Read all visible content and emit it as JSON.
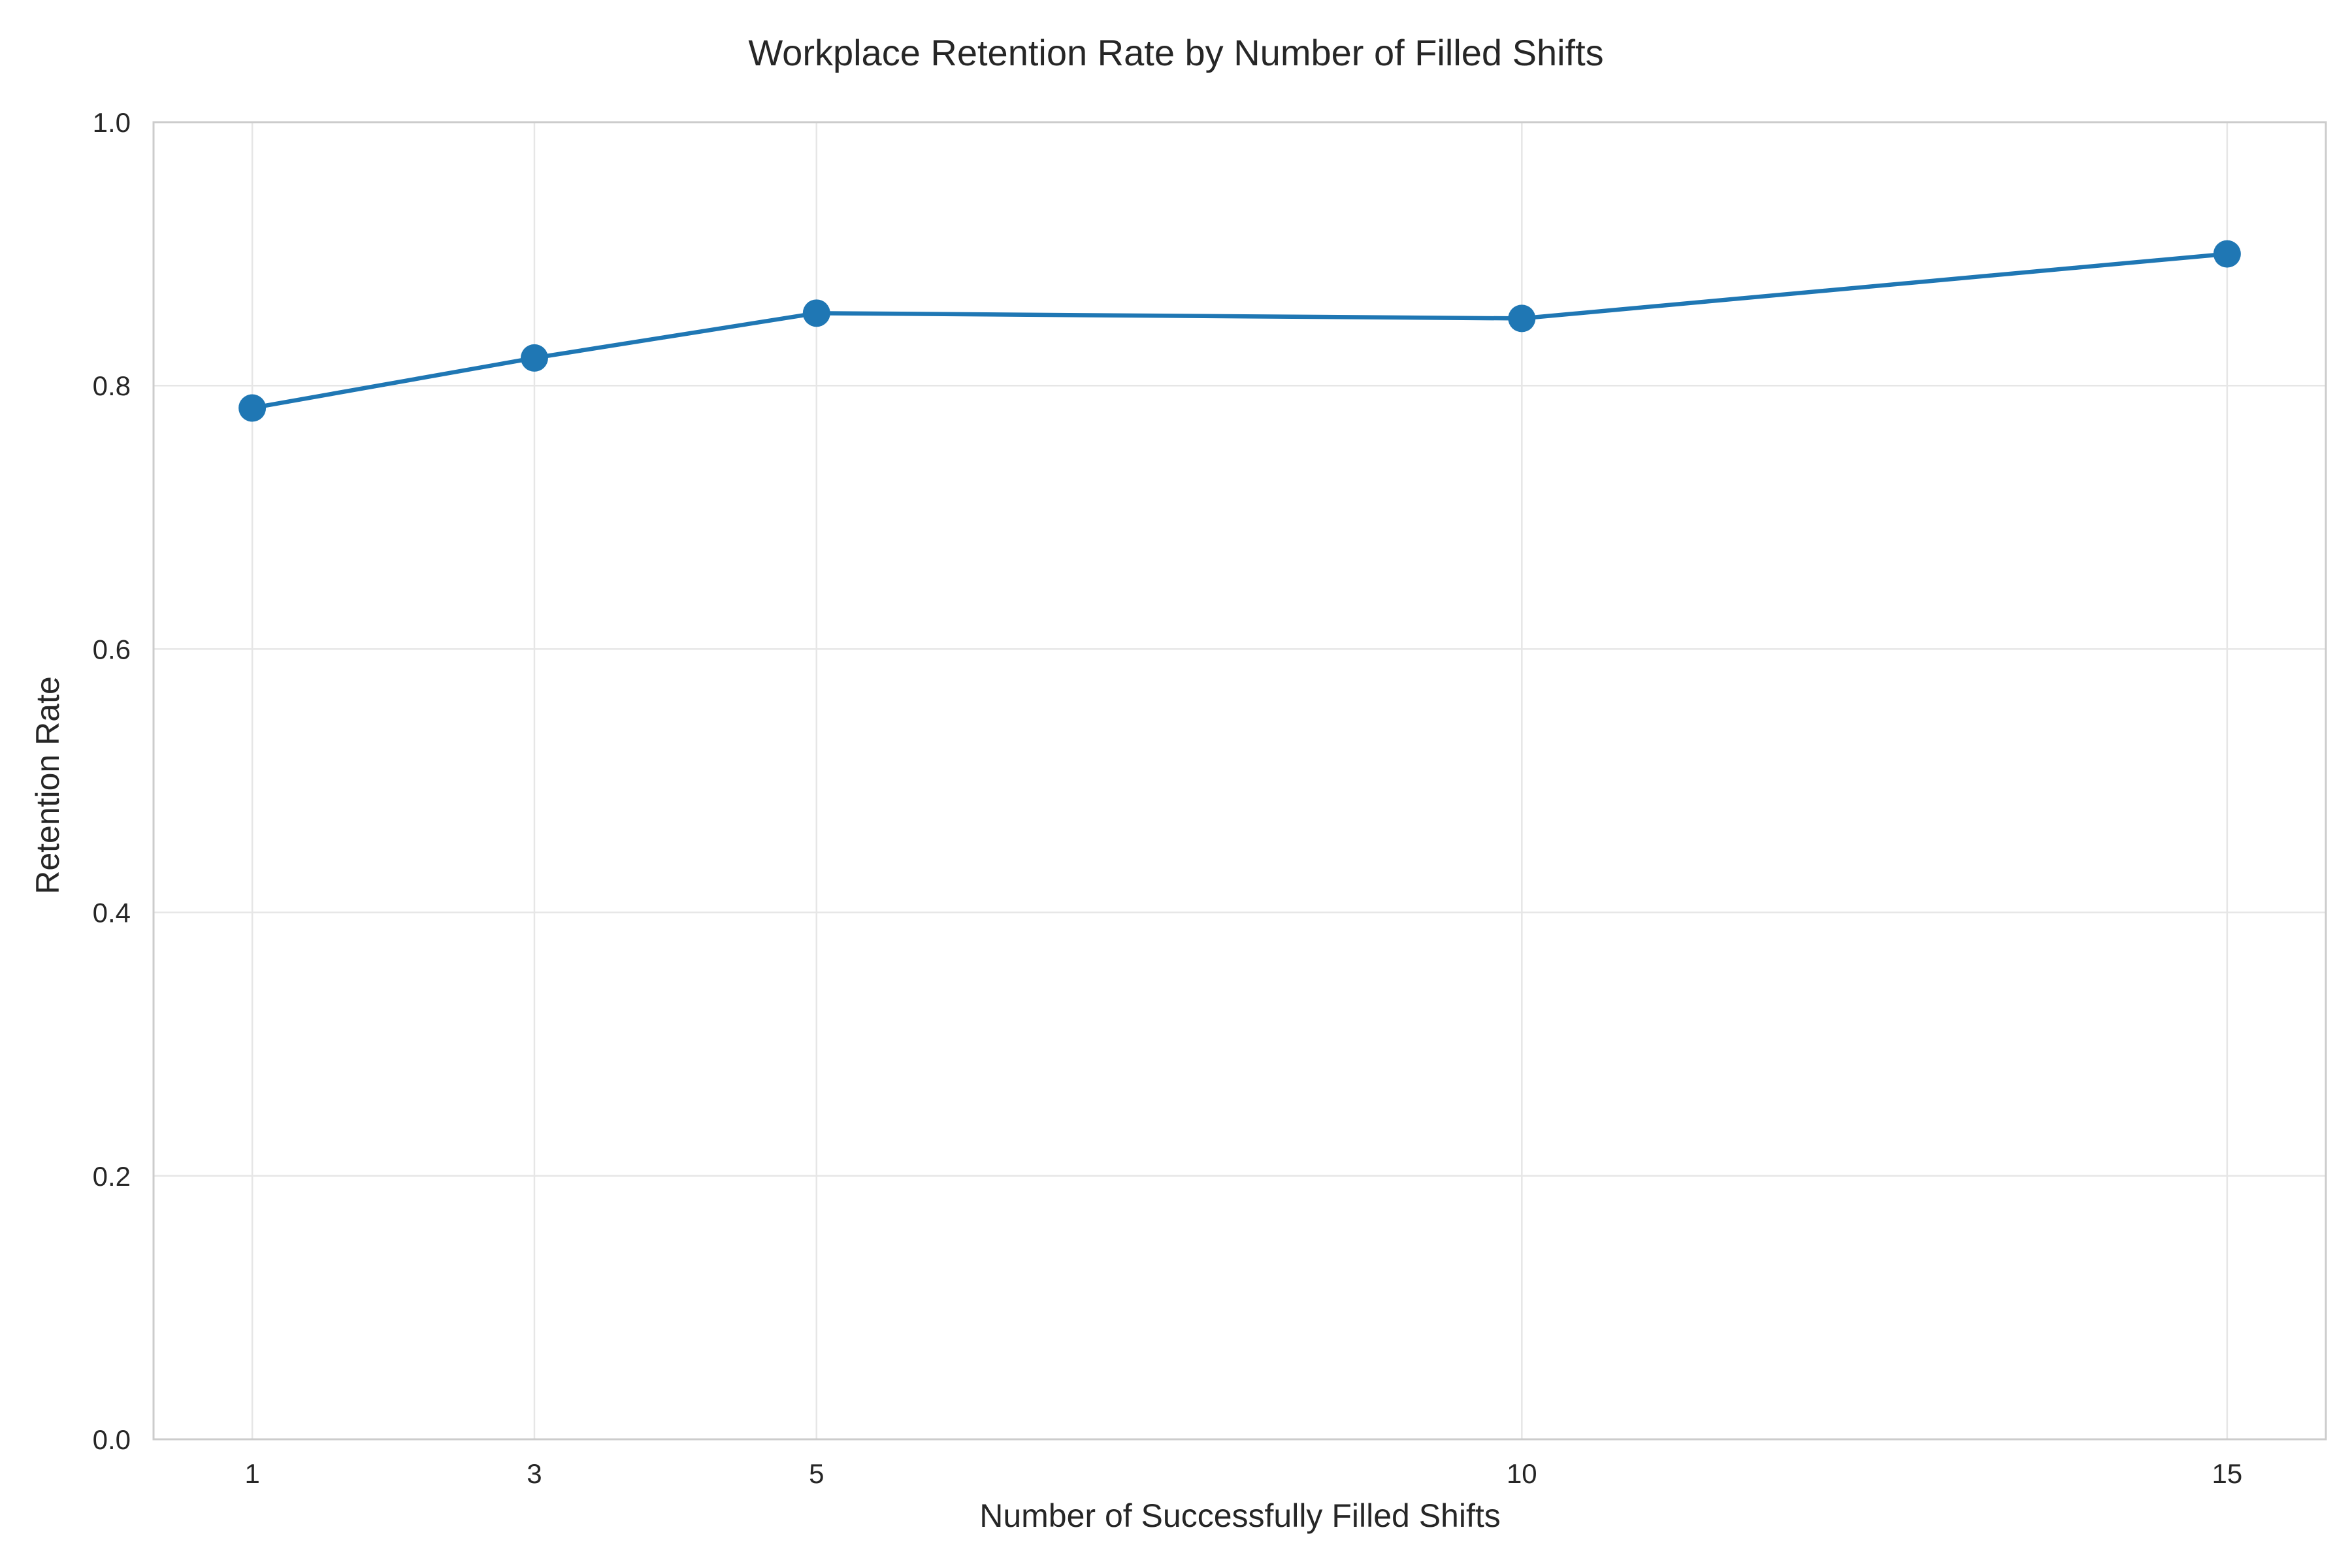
{
  "chart_data": {
    "type": "line",
    "title": "Workplace Retention Rate by Number of Filled Shifts",
    "xlabel": "Number of Successfully Filled Shifts",
    "ylabel": "Retention Rate",
    "x": [
      1,
      3,
      5,
      10,
      15
    ],
    "x_tick_labels": [
      "1",
      "3",
      "5",
      "10",
      "15"
    ],
    "xlim": [
      0.3,
      15.7
    ],
    "ylim": [
      0.0,
      1.0
    ],
    "y_ticks": [
      0.0,
      0.2,
      0.4,
      0.6,
      0.8,
      1.0
    ],
    "y_tick_labels": [
      "0.0",
      "0.2",
      "0.4",
      "0.6",
      "0.8",
      "1.0"
    ],
    "grid": true,
    "legend": "none",
    "series": [
      {
        "values": [
          0.783,
          0.821,
          0.855,
          0.851,
          0.9
        ],
        "color": "#1f77b4",
        "marker": "circle"
      }
    ],
    "colors": {
      "line": "#1f77b4",
      "grid": "#e6e6e6",
      "spine": "#cccccc",
      "text": "#262626",
      "background": "#ffffff"
    }
  }
}
